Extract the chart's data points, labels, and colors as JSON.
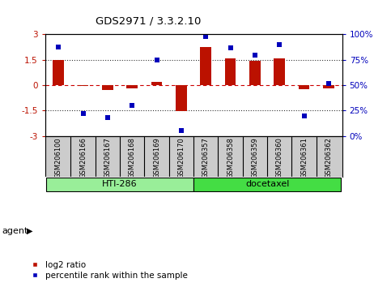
{
  "title": "GDS2971 / 3.3.2.10",
  "samples": [
    "GSM206100",
    "GSM206166",
    "GSM206167",
    "GSM206168",
    "GSM206169",
    "GSM206170",
    "GSM206357",
    "GSM206358",
    "GSM206359",
    "GSM206360",
    "GSM206361",
    "GSM206362"
  ],
  "log2_ratio": [
    1.5,
    -0.05,
    -0.3,
    -0.2,
    0.18,
    -1.55,
    2.25,
    1.6,
    1.45,
    1.6,
    -0.25,
    -0.2
  ],
  "percentile": [
    88,
    22,
    18,
    30,
    75,
    5,
    98,
    87,
    80,
    90,
    20,
    52
  ],
  "bar_color": "#bb1100",
  "dot_color": "#0000bb",
  "ylim_left": [
    -3,
    3
  ],
  "yticks_left": [
    -3,
    -1.5,
    0,
    1.5,
    3
  ],
  "ytick_labels_left": [
    "-3",
    "-1.5",
    "0",
    "1.5",
    "3"
  ],
  "ylim_right": [
    0,
    100
  ],
  "yticks_right": [
    0,
    25,
    50,
    75,
    100
  ],
  "ytick_labels_right": [
    "0%",
    "25%",
    "50%",
    "75%",
    "100%"
  ],
  "hti286_color": "#99ee99",
  "docetaxel_color": "#44dd44",
  "hti286_samples": 6,
  "docetaxel_samples": 6,
  "legend_red_label": "log2 ratio",
  "legend_blue_label": "percentile rank within the sample",
  "agent_label": "agent",
  "hti286_label": "HTI-286",
  "docetaxel_label": "docetaxel",
  "background_color": "#ffffff",
  "plot_bg_color": "#ffffff",
  "label_bg_color": "#cccccc",
  "dashed_line_color": "#cc0000",
  "dotted_line_color": "#333333",
  "bar_width": 0.45,
  "dot_marker_size": 4
}
